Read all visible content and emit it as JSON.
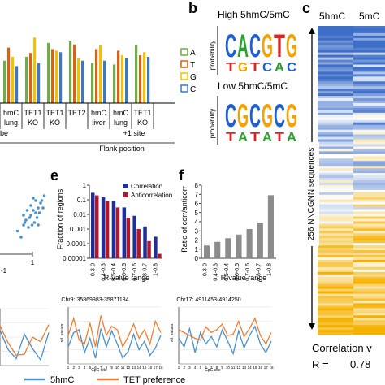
{
  "panel_labels": {
    "b": "b",
    "c": "c",
    "e": "e",
    "f": "f"
  },
  "panel_a": {
    "legend": [
      "A",
      "T",
      "G",
      "C"
    ],
    "colors": {
      "A": "#70ad47",
      "T": "#e06010",
      "G": "#f2c200",
      "C": "#3a78c8"
    },
    "groups_row1": [
      "hmC",
      "TET1",
      "TET1",
      "TET2",
      "hmC",
      "hmC",
      "TET1"
    ],
    "groups_row2": [
      "lung",
      "KO",
      "KO",
      "",
      "liver",
      "lung",
      "KO"
    ],
    "left_label": "be",
    "x_title": "Flank position",
    "site_label": "+1 site"
  },
  "panel_b": {
    "title_high": "High 5hmC/5mC",
    "title_low": "Low 5hmC/5mC",
    "ylabel": "probability",
    "high_top": [
      "C",
      "A",
      "C",
      "G",
      "T",
      "G"
    ],
    "high_bottom": [
      "T",
      "G",
      "T",
      "C",
      "A",
      "C"
    ],
    "low_top": [
      "C",
      "G",
      "C",
      "G",
      "C",
      "G"
    ],
    "low_bottom": [
      "T",
      "A",
      "T",
      "A",
      "T",
      "A"
    ]
  },
  "panel_c": {
    "col1": "5hmC",
    "col2": "5mC",
    "side_label": "256 NNCGNN sequences",
    "footer_title": "Correlation v",
    "footer_r_label": "R =",
    "footer_r_value": "0.78"
  },
  "panel_d": {
    "tick_right": "1",
    "tick_left": "-1"
  },
  "panel_g": {
    "title1": "Chr9: 35869983-35871184",
    "title2": "Chr17: 4911453-4914250",
    "ylabel": "rel. values",
    "xlabel": "CpG site",
    "legend_5hmc": "5hmC",
    "legend_tet": "TET preference",
    "color_5hmc": "#4a90c8",
    "color_tet": "#ee7d31"
  },
  "chart_data": [
    {
      "type": "bar",
      "panel": "a",
      "title": "",
      "xlabel": "Flank position",
      "ylabel": "",
      "groups": [
        "hmC lung",
        "TET1 KO",
        "TET1 KO",
        "TET2",
        "hmC liver",
        "hmC lung",
        "TET1 KO"
      ],
      "series": [
        {
          "name": "A",
          "values": [
            0.55,
            0.6,
            0.78,
            0.8,
            0.52,
            0.5,
            0.75
          ]
        },
        {
          "name": "T",
          "values": [
            0.72,
            0.65,
            0.7,
            0.76,
            0.7,
            0.68,
            0.62
          ]
        },
        {
          "name": "G",
          "values": [
            0.6,
            0.85,
            0.68,
            0.58,
            0.75,
            0.62,
            0.66
          ]
        },
        {
          "name": "C",
          "values": [
            0.48,
            0.52,
            0.66,
            0.55,
            0.55,
            0.58,
            0.6
          ]
        }
      ],
      "ylim": [
        0,
        1
      ]
    },
    {
      "type": "heatmap",
      "panel": "c",
      "columns": [
        "5hmC",
        "5mC"
      ],
      "rows": 256,
      "color_low": "#3d6ec8",
      "color_high": "#f5b100"
    },
    {
      "type": "scatter",
      "panel": "d",
      "x": [
        0.55,
        0.6,
        0.62,
        0.65,
        0.67,
        0.7,
        0.72,
        0.74,
        0.6,
        0.64,
        0.68,
        0.71,
        0.75,
        0.58,
        0.66,
        0.69,
        0.73,
        0.77,
        0.63,
        0.7,
        0.66,
        0.72,
        0.61,
        0.76,
        0.68
      ],
      "y": [
        0.55,
        0.6,
        0.64,
        0.66,
        0.6,
        0.7,
        0.74,
        0.78,
        0.68,
        0.58,
        0.72,
        0.66,
        0.8,
        0.5,
        0.76,
        0.62,
        0.7,
        0.84,
        0.72,
        0.8,
        0.68,
        0.6,
        0.62,
        0.74,
        0.82
      ],
      "xlim": [
        -1,
        1
      ],
      "ylim": [
        -1,
        1
      ]
    },
    {
      "type": "bar",
      "panel": "e",
      "xlabel": "R-value range",
      "ylabel": "Fraction of regions",
      "categories": [
        "0.3-0",
        "0.4-0.3",
        "0.5-0.4",
        "0.6-0.5",
        "0.7-0.6",
        "0.8-0.7",
        "1-0.8"
      ],
      "series": [
        {
          "name": "Correlation",
          "values": [
            0.3,
            0.15,
            0.08,
            0.03,
            0.008,
            0.0015,
            0.0003
          ]
        },
        {
          "name": "Anticorrelation",
          "values": [
            0.2,
            0.08,
            0.03,
            0.006,
            0.001,
            0.00015,
            2e-05
          ]
        }
      ],
      "yscale": "log",
      "yticks": [
        "1",
        "0.1",
        "0.01",
        "0.001",
        "0.0001",
        "0.00001"
      ],
      "ylim": [
        1e-05,
        1
      ]
    },
    {
      "type": "bar",
      "panel": "f",
      "xlabel": "R-value range",
      "ylabel": "Ratio of corr/anticorr",
      "categories": [
        "0.3-0",
        "0.4-0.3",
        "0.5-0.4",
        "0.6-0.5",
        "0.7-0.6",
        "0.8-0.7",
        "1-0.8"
      ],
      "values": [
        1.4,
        1.8,
        2.2,
        2.6,
        3.2,
        3.9,
        6.9
      ],
      "yticks": [
        "0",
        "1",
        "2",
        "3",
        "4",
        "5",
        "6",
        "7",
        "8"
      ],
      "ylim": [
        0,
        8
      ]
    },
    {
      "type": "line",
      "panel": "g-left",
      "series": [
        {
          "name": "5hmC",
          "values": [
            0.62,
            0.28,
            0.12,
            0.55,
            0.3,
            0.1,
            0.58
          ]
        },
        {
          "name": "TET preference",
          "values": [
            0.7,
            0.4,
            0.18,
            0.2,
            0.5,
            0.42,
            0.72
          ]
        }
      ]
    },
    {
      "type": "line",
      "panel": "g-mid",
      "title": "Chr9: 35869983-35871184",
      "xlabel": "CpG site",
      "ylabel": "rel. values",
      "x": [
        "1",
        "2",
        "3",
        "4",
        "5",
        "6",
        "7",
        "8",
        "9",
        "10",
        "11",
        "12",
        "13",
        "14",
        "15",
        "16",
        "17",
        "18"
      ],
      "series": [
        {
          "name": "5hmC",
          "values": [
            0.3,
            0.55,
            0.6,
            0.2,
            0.45,
            0.1,
            0.62,
            0.3,
            0.58,
            0.35,
            0.1,
            0.22,
            0.52,
            0.25,
            0.4,
            0.15,
            0.28,
            0.5
          ]
        },
        {
          "name": "TET preference",
          "values": [
            0.5,
            0.8,
            0.42,
            0.35,
            0.72,
            0.3,
            0.85,
            0.5,
            0.66,
            0.6,
            0.3,
            0.48,
            0.7,
            0.45,
            0.6,
            0.35,
            0.75,
            0.55
          ]
        }
      ],
      "ylim": [
        0,
        1
      ]
    },
    {
      "type": "line",
      "panel": "g-right",
      "title": "Chr17: 4911453-4914250",
      "xlabel": "CpG site",
      "ylabel": "rel. values",
      "x": [
        "1",
        "2",
        "3",
        "4",
        "5",
        "6",
        "7",
        "8",
        "9",
        "10",
        "11",
        "12",
        "13",
        "14",
        "15",
        "16",
        "17",
        "18"
      ],
      "series": [
        {
          "name": "5hmC",
          "values": [
            0.45,
            0.3,
            0.62,
            0.2,
            0.55,
            0.35,
            0.48,
            0.3,
            0.6,
            0.4,
            0.18,
            0.58,
            0.28,
            0.5,
            0.66,
            0.35,
            0.2,
            0.4
          ]
        },
        {
          "name": "TET preference",
          "values": [
            0.6,
            0.55,
            0.5,
            0.45,
            0.42,
            0.65,
            0.55,
            0.6,
            0.7,
            0.5,
            0.52,
            0.75,
            0.48,
            0.62,
            0.8,
            0.5,
            0.35,
            0.55
          ]
        }
      ],
      "ylim": [
        0,
        1
      ]
    }
  ]
}
